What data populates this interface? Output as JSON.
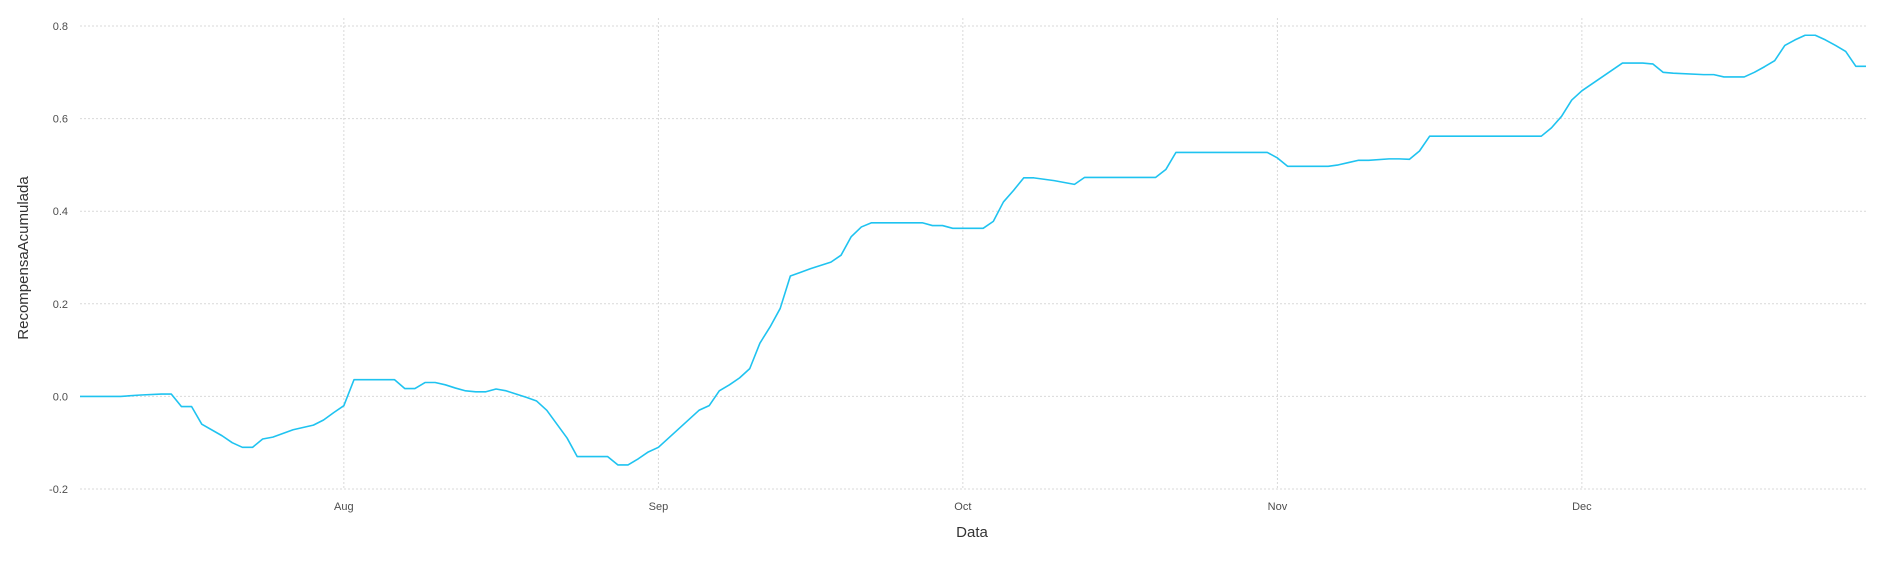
{
  "chart_data": {
    "type": "line",
    "title": "",
    "xlabel": "Data",
    "ylabel": "RecompensaAcumulada",
    "x_ticks": [
      {
        "label": "Aug",
        "date": "2023-08-01"
      },
      {
        "label": "Sep",
        "date": "2023-09-01"
      },
      {
        "label": "Oct",
        "date": "2023-10-01"
      },
      {
        "label": "Nov",
        "date": "2023-11-01"
      },
      {
        "label": "Dec",
        "date": "2023-12-01"
      }
    ],
    "y_ticks": [
      {
        "label": "-0.2",
        "value": -0.2
      },
      {
        "label": "0.0",
        "value": 0.0
      },
      {
        "label": "0.2",
        "value": 0.2
      },
      {
        "label": "0.4",
        "value": 0.4
      },
      {
        "label": "0.6",
        "value": 0.6
      },
      {
        "label": "0.8",
        "value": 0.8
      }
    ],
    "xlim": [
      "2023-07-06",
      "2023-12-29"
    ],
    "ylim": [
      -0.2,
      0.8
    ],
    "grid": true,
    "series": [
      {
        "color": "#1fc3f0",
        "points": [
          [
            "2023-07-06",
            0.0
          ],
          [
            "2023-07-10",
            0.0
          ],
          [
            "2023-07-12",
            0.003
          ],
          [
            "2023-07-14",
            0.005
          ],
          [
            "2023-07-15",
            0.005
          ],
          [
            "2023-07-16",
            -0.022
          ],
          [
            "2023-07-17",
            -0.022
          ],
          [
            "2023-07-18",
            -0.06
          ],
          [
            "2023-07-20",
            -0.085
          ],
          [
            "2023-07-21",
            -0.1
          ],
          [
            "2023-07-22",
            -0.11
          ],
          [
            "2023-07-23",
            -0.11
          ],
          [
            "2023-07-24",
            -0.092
          ],
          [
            "2023-07-25",
            -0.088
          ],
          [
            "2023-07-27",
            -0.072
          ],
          [
            "2023-07-29",
            -0.062
          ],
          [
            "2023-07-30",
            -0.051
          ],
          [
            "2023-07-31",
            -0.035
          ],
          [
            "2023-08-01",
            -0.02
          ],
          [
            "2023-08-02",
            0.036
          ],
          [
            "2023-08-03",
            0.036
          ],
          [
            "2023-08-04",
            0.036
          ],
          [
            "2023-08-05",
            0.036
          ],
          [
            "2023-08-06",
            0.036
          ],
          [
            "2023-08-07",
            0.017
          ],
          [
            "2023-08-08",
            0.017
          ],
          [
            "2023-08-09",
            0.03
          ],
          [
            "2023-08-10",
            0.03
          ],
          [
            "2023-08-11",
            0.025
          ],
          [
            "2023-08-12",
            0.018
          ],
          [
            "2023-08-13",
            0.012
          ],
          [
            "2023-08-14",
            0.01
          ],
          [
            "2023-08-15",
            0.01
          ],
          [
            "2023-08-16",
            0.016
          ],
          [
            "2023-08-17",
            0.012
          ],
          [
            "2023-08-18",
            0.005
          ],
          [
            "2023-08-19",
            -0.002
          ],
          [
            "2023-08-20",
            -0.01
          ],
          [
            "2023-08-21",
            -0.03
          ],
          [
            "2023-08-22",
            -0.06
          ],
          [
            "2023-08-23",
            -0.09
          ],
          [
            "2023-08-24",
            -0.13
          ],
          [
            "2023-08-25",
            -0.13
          ],
          [
            "2023-08-26",
            -0.13
          ],
          [
            "2023-08-27",
            -0.13
          ],
          [
            "2023-08-28",
            -0.148
          ],
          [
            "2023-08-29",
            -0.148
          ],
          [
            "2023-08-30",
            -0.135
          ],
          [
            "2023-08-31",
            -0.12
          ],
          [
            "2023-09-01",
            -0.11
          ],
          [
            "2023-09-02",
            -0.09
          ],
          [
            "2023-09-03",
            -0.07
          ],
          [
            "2023-09-04",
            -0.05
          ],
          [
            "2023-09-05",
            -0.03
          ],
          [
            "2023-09-06",
            -0.02
          ],
          [
            "2023-09-07",
            0.012
          ],
          [
            "2023-09-08",
            0.025
          ],
          [
            "2023-09-09",
            0.04
          ],
          [
            "2023-09-10",
            0.06
          ],
          [
            "2023-09-11",
            0.115
          ],
          [
            "2023-09-12",
            0.15
          ],
          [
            "2023-09-13",
            0.19
          ],
          [
            "2023-09-14",
            0.26
          ],
          [
            "2023-09-15",
            0.268
          ],
          [
            "2023-09-16",
            0.276
          ],
          [
            "2023-09-17",
            0.283
          ],
          [
            "2023-09-18",
            0.29
          ],
          [
            "2023-09-19",
            0.305
          ],
          [
            "2023-09-20",
            0.345
          ],
          [
            "2023-09-21",
            0.366
          ],
          [
            "2023-09-22",
            0.375
          ],
          [
            "2023-09-25",
            0.375
          ],
          [
            "2023-09-27",
            0.375
          ],
          [
            "2023-09-28",
            0.369
          ],
          [
            "2023-09-29",
            0.369
          ],
          [
            "2023-09-30",
            0.363
          ],
          [
            "2023-10-03",
            0.363
          ],
          [
            "2023-10-04",
            0.378
          ],
          [
            "2023-10-05",
            0.42
          ],
          [
            "2023-10-06",
            0.445
          ],
          [
            "2023-10-07",
            0.472
          ],
          [
            "2023-10-08",
            0.472
          ],
          [
            "2023-10-10",
            0.466
          ],
          [
            "2023-10-12",
            0.458
          ],
          [
            "2023-10-13",
            0.473
          ],
          [
            "2023-10-20",
            0.473
          ],
          [
            "2023-10-21",
            0.49
          ],
          [
            "2023-10-22",
            0.527
          ],
          [
            "2023-10-31",
            0.527
          ],
          [
            "2023-11-01",
            0.515
          ],
          [
            "2023-11-02",
            0.497
          ],
          [
            "2023-11-06",
            0.497
          ],
          [
            "2023-11-07",
            0.5
          ],
          [
            "2023-11-08",
            0.505
          ],
          [
            "2023-11-09",
            0.51
          ],
          [
            "2023-11-10",
            0.51
          ],
          [
            "2023-11-12",
            0.513
          ],
          [
            "2023-11-13",
            0.513
          ],
          [
            "2023-11-14",
            0.512
          ],
          [
            "2023-11-15",
            0.53
          ],
          [
            "2023-11-16",
            0.562
          ],
          [
            "2023-11-27",
            0.562
          ],
          [
            "2023-11-28",
            0.58
          ],
          [
            "2023-11-29",
            0.605
          ],
          [
            "2023-11-30",
            0.64
          ],
          [
            "2023-12-01",
            0.66
          ],
          [
            "2023-12-05",
            0.72
          ],
          [
            "2023-12-07",
            0.72
          ],
          [
            "2023-12-08",
            0.718
          ],
          [
            "2023-12-09",
            0.7
          ],
          [
            "2023-12-10",
            0.698
          ],
          [
            "2023-12-13",
            0.695
          ],
          [
            "2023-12-14",
            0.695
          ],
          [
            "2023-12-15",
            0.69
          ],
          [
            "2023-12-17",
            0.69
          ],
          [
            "2023-12-18",
            0.7
          ],
          [
            "2023-12-19",
            0.712
          ],
          [
            "2023-12-20",
            0.725
          ],
          [
            "2023-12-21",
            0.758
          ],
          [
            "2023-12-22",
            0.77
          ],
          [
            "2023-12-23",
            0.78
          ],
          [
            "2023-12-24",
            0.78
          ],
          [
            "2023-12-25",
            0.77
          ],
          [
            "2023-12-26",
            0.758
          ],
          [
            "2023-12-27",
            0.745
          ],
          [
            "2023-12-28",
            0.713
          ],
          [
            "2023-12-29",
            0.713
          ]
        ]
      }
    ]
  }
}
